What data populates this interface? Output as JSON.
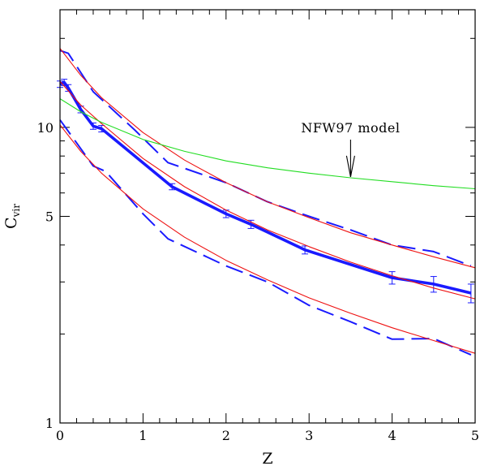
{
  "chart_data": {
    "type": "line",
    "xlabel": "Z",
    "ylabel_main": "C",
    "ylabel_sub": "vir",
    "xlim": [
      0,
      5
    ],
    "ylim": [
      1,
      25
    ],
    "yscale": "log",
    "x_ticks": [
      0,
      1,
      2,
      3,
      4,
      5
    ],
    "y_ticks_labeled": [
      1,
      5,
      10
    ],
    "y_ticks_minor": [
      2,
      3,
      4,
      6,
      7,
      8,
      9,
      20
    ],
    "annotations": [
      {
        "text": "NFW97 model",
        "arrow_to": [
          3.5,
          6.8
        ]
      }
    ],
    "series": [
      {
        "name": "",
        "style": "thick-solid",
        "color": "#1a1aff",
        "x": [
          0,
          0.05,
          0.1,
          0.25,
          0.4,
          0.5,
          1.35,
          2.0,
          2.3,
          2.95,
          4.0,
          4.5,
          4.95
        ],
        "y": [
          14.0,
          14.2,
          13.6,
          11.5,
          10.1,
          9.9,
          6.3,
          5.1,
          4.7,
          3.85,
          3.1,
          2.95,
          2.75
        ],
        "yerr": [
          0.35,
          0.35,
          0.35,
          0.3,
          0.25,
          0.25,
          0.15,
          0.15,
          0.15,
          0.12,
          0.15,
          0.18,
          0.2
        ]
      },
      {
        "name": "",
        "style": "dashed",
        "color": "#1a1aff",
        "x": [
          0,
          0.1,
          0.4,
          0.9,
          1.3,
          2.0,
          2.5,
          3.0,
          3.5,
          4.0,
          4.5,
          4.95
        ],
        "y": [
          18.2,
          17.8,
          13.2,
          9.8,
          7.6,
          6.5,
          5.6,
          5.0,
          4.5,
          4.0,
          3.8,
          3.4
        ]
      },
      {
        "name": "",
        "style": "dashed",
        "color": "#1a1aff",
        "x": [
          0,
          0.1,
          0.4,
          0.55,
          1.0,
          1.3,
          2.0,
          2.5,
          3.0,
          3.5,
          4.0,
          4.5,
          4.95
        ],
        "y": [
          10.6,
          9.7,
          7.4,
          7.1,
          5.1,
          4.2,
          3.4,
          3.0,
          2.5,
          2.2,
          1.92,
          1.93,
          1.7
        ]
      },
      {
        "name": "",
        "style": "thin-solid",
        "color": "#ee1111",
        "x": [
          0,
          0.25,
          0.5,
          1.0,
          1.5,
          2.0,
          2.5,
          3.0,
          3.5,
          4.0,
          4.5,
          5.0
        ],
        "y": [
          18.5,
          15.0,
          12.6,
          9.6,
          7.75,
          6.5,
          5.6,
          4.95,
          4.4,
          4.0,
          3.65,
          3.35
        ]
      },
      {
        "name": "",
        "style": "thin-solid",
        "color": "#ee1111",
        "x": [
          0,
          0.25,
          0.5,
          1.0,
          1.5,
          2.0,
          2.5,
          3.0,
          3.5,
          4.0,
          4.5,
          5.0
        ],
        "y": [
          14.3,
          11.9,
          10.3,
          7.85,
          6.3,
          5.25,
          4.5,
          3.95,
          3.5,
          3.15,
          2.86,
          2.63
        ]
      },
      {
        "name": "",
        "style": "thin-solid",
        "color": "#ee1111",
        "x": [
          0,
          0.25,
          0.5,
          1.0,
          1.5,
          2.0,
          2.5,
          3.0,
          3.5,
          4.0,
          4.5,
          5.0
        ],
        "y": [
          10.2,
          8.3,
          7.0,
          5.3,
          4.25,
          3.55,
          3.05,
          2.65,
          2.35,
          2.1,
          1.9,
          1.72
        ]
      },
      {
        "name": "",
        "style": "thin-solid",
        "color": "#22dd22",
        "x": [
          0,
          0.25,
          0.5,
          1.0,
          1.5,
          2.0,
          2.5,
          3.0,
          3.5,
          4.0,
          4.5,
          5.0
        ],
        "y": [
          12.5,
          11.3,
          10.4,
          9.1,
          8.3,
          7.7,
          7.3,
          7.0,
          6.75,
          6.55,
          6.35,
          6.2
        ]
      }
    ]
  }
}
